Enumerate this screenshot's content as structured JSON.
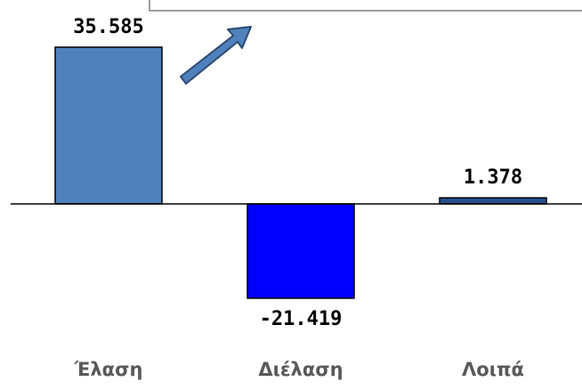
{
  "chart_data": {
    "type": "bar",
    "categories": [
      "Έλαση",
      "Διέλαση",
      "Λοιπά"
    ],
    "values": [
      35.585,
      -21.419,
      1.378
    ],
    "colors": [
      "#4f81bd",
      "#0000ff",
      "#254f8e"
    ]
  }
}
